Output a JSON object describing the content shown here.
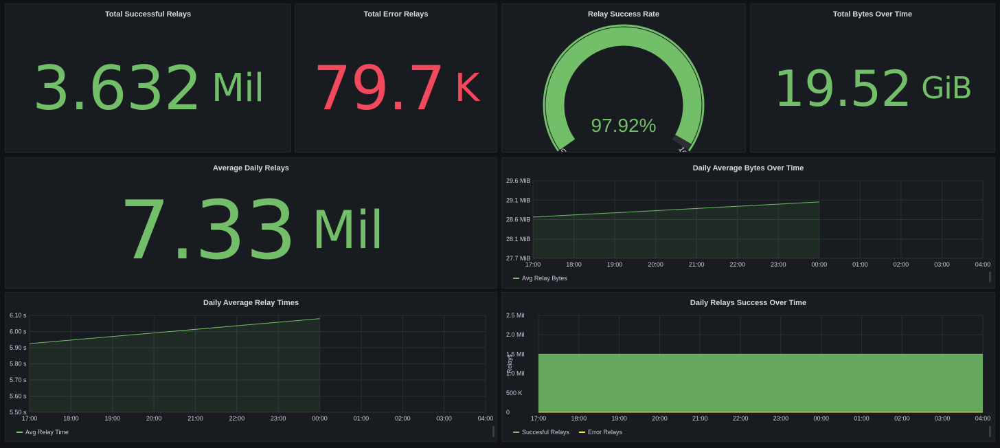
{
  "colors": {
    "green": "#73bf69",
    "red": "#f2495c",
    "yellow": "#fade2a",
    "gauge_bg": "#2c2f33"
  },
  "panels": {
    "successful": {
      "title": "Total Successful Relays",
      "value": "3.632",
      "unit": "Mil"
    },
    "errors": {
      "title": "Total Error Relays",
      "value": "79.7",
      "unit": "K"
    },
    "rate": {
      "title": "Relay Success Rate",
      "value": "97.92%",
      "min": "0",
      "max": "100",
      "percent": 97.92
    },
    "bytes": {
      "title": "Total Bytes Over Time",
      "value": "19.52",
      "unit": "GiB"
    },
    "daily_relays": {
      "title": "Average Daily Relays",
      "value": "7.33",
      "unit": "Mil"
    },
    "bytes_time": {
      "title": "Daily Average Bytes Over Time",
      "legend": [
        "Avg Relay Bytes"
      ]
    },
    "relay_times": {
      "title": "Daily Average Relay Times",
      "legend": [
        "Avg Relay Time"
      ]
    },
    "success_time": {
      "title": "Daily Relays Success Over Time",
      "legend": [
        "Succesful Relays",
        "Error Relays"
      ]
    }
  },
  "chart_data": [
    {
      "type": "line",
      "title": "Daily Average Bytes Over Time",
      "x": [
        "17:00",
        "18:00",
        "19:00",
        "20:00",
        "21:00",
        "22:00",
        "23:00",
        "00:00",
        "01:00",
        "02:00",
        "03:00",
        "04:00"
      ],
      "yticks": [
        "27.7 MiB",
        "28.1 MiB",
        "28.6 MiB",
        "29.1 MiB",
        "29.6 MiB"
      ],
      "ylim": [
        27.7,
        29.6
      ],
      "series": [
        {
          "name": "Avg Relay Bytes",
          "x": [
            "17:00",
            "00:00"
          ],
          "values": [
            28.71,
            29.08
          ]
        }
      ],
      "grid": true,
      "legend": "bottom-left"
    },
    {
      "type": "line",
      "title": "Daily Average Relay Times",
      "x": [
        "17:00",
        "18:00",
        "19:00",
        "20:00",
        "21:00",
        "22:00",
        "23:00",
        "00:00",
        "01:00",
        "02:00",
        "03:00",
        "04:00"
      ],
      "yticks": [
        "5.50 s",
        "5.60 s",
        "5.70 s",
        "5.80 s",
        "5.90 s",
        "6.00 s",
        "6.10 s"
      ],
      "ylim": [
        5.5,
        6.1
      ],
      "series": [
        {
          "name": "Avg Relay Time",
          "x": [
            "17:00",
            "00:00"
          ],
          "values": [
            5.925,
            6.08
          ]
        }
      ],
      "grid": true,
      "legend": "bottom-left"
    },
    {
      "type": "area",
      "title": "Daily Relays Success Over Time",
      "x": [
        "17:00",
        "18:00",
        "19:00",
        "20:00",
        "21:00",
        "22:00",
        "23:00",
        "00:00",
        "01:00",
        "02:00",
        "03:00",
        "04:00"
      ],
      "yticks": [
        "0",
        "500 K",
        "1.0 Mil",
        "1.5 Mil",
        "2.0 Mil",
        "2.5 Mil"
      ],
      "ylim": [
        0,
        2500000
      ],
      "ylabel": "Relays",
      "series": [
        {
          "name": "Succesful Relays",
          "x": [
            "17:00",
            "04:00"
          ],
          "values": [
            1500000,
            1500000
          ]
        },
        {
          "name": "Error Relays",
          "x": [
            "17:00",
            "04:00"
          ],
          "values": [
            0,
            0
          ]
        }
      ],
      "grid": true,
      "legend": "bottom-left"
    }
  ]
}
